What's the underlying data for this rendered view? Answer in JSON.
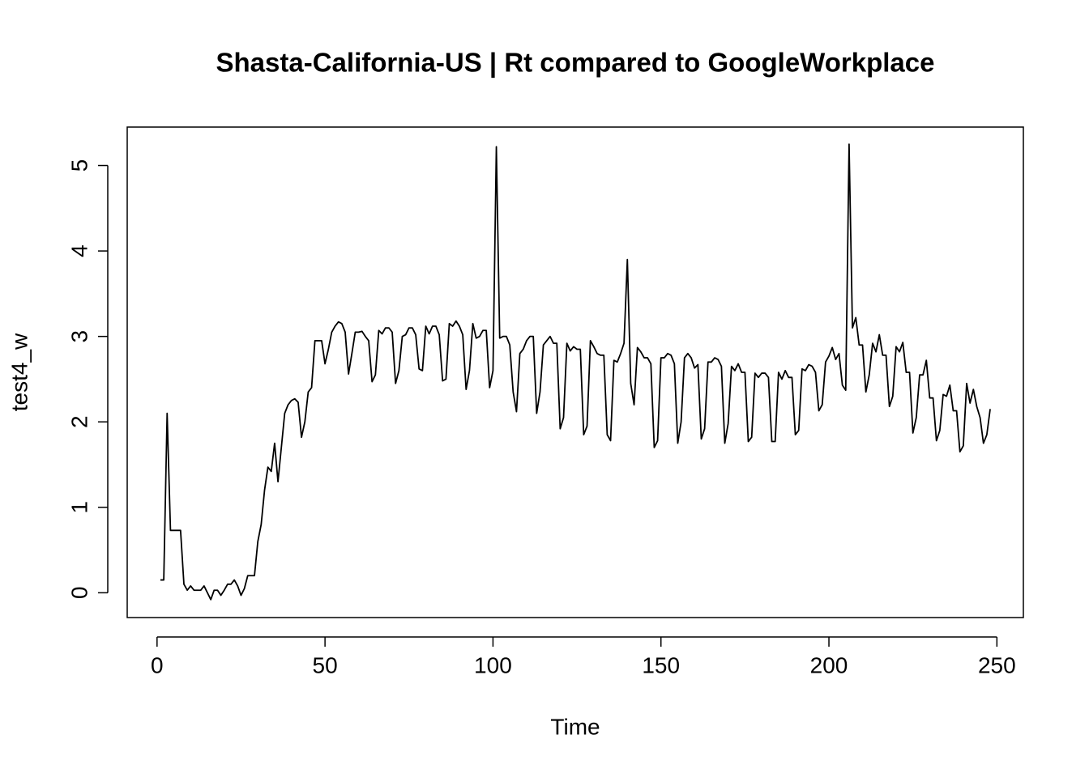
{
  "chart_data": {
    "type": "line",
    "title": "Shasta-California-US | Rt compared to GoogleWorkplace",
    "xlabel": "Time",
    "ylabel": "test4_w",
    "xlim": [
      -8.88,
      257.88
    ],
    "ylim": [
      -0.29,
      5.45
    ],
    "xticks": [
      0,
      50,
      100,
      150,
      200,
      250
    ],
    "yticks": [
      0,
      1,
      2,
      3,
      4,
      5
    ],
    "grid": false,
    "x": [
      1,
      2,
      3,
      4,
      5,
      6,
      7,
      8,
      9,
      10,
      11,
      12,
      13,
      14,
      15,
      16,
      17,
      18,
      19,
      20,
      21,
      22,
      23,
      24,
      25,
      26,
      27,
      28,
      29,
      30,
      31,
      32,
      33,
      34,
      35,
      36,
      37,
      38,
      39,
      40,
      41,
      42,
      43,
      44,
      45,
      46,
      47,
      48,
      49,
      50,
      51,
      52,
      53,
      54,
      55,
      56,
      57,
      58,
      59,
      60,
      61,
      62,
      63,
      64,
      65,
      66,
      67,
      68,
      69,
      70,
      71,
      72,
      73,
      74,
      75,
      76,
      77,
      78,
      79,
      80,
      81,
      82,
      83,
      84,
      85,
      86,
      87,
      88,
      89,
      90,
      91,
      92,
      93,
      94,
      95,
      96,
      97,
      98,
      99,
      100,
      101,
      102,
      103,
      104,
      105,
      106,
      107,
      108,
      109,
      110,
      111,
      112,
      113,
      114,
      115,
      116,
      117,
      118,
      119,
      120,
      121,
      122,
      123,
      124,
      125,
      126,
      127,
      128,
      129,
      130,
      131,
      132,
      133,
      134,
      135,
      136,
      137,
      138,
      139,
      140,
      141,
      142,
      143,
      144,
      145,
      146,
      147,
      148,
      149,
      150,
      151,
      152,
      153,
      154,
      155,
      156,
      157,
      158,
      159,
      160,
      161,
      162,
      163,
      164,
      165,
      166,
      167,
      168,
      169,
      170,
      171,
      172,
      173,
      174,
      175,
      176,
      177,
      178,
      179,
      180,
      181,
      182,
      183,
      184,
      185,
      186,
      187,
      188,
      189,
      190,
      191,
      192,
      193,
      194,
      195,
      196,
      197,
      198,
      199,
      200,
      201,
      202,
      203,
      204,
      205,
      206,
      207,
      208,
      209,
      210,
      211,
      212,
      213,
      214,
      215,
      216,
      217,
      218,
      219,
      220,
      221,
      222,
      223,
      224,
      225,
      226,
      227,
      228,
      229,
      230,
      231,
      232,
      233,
      234,
      235,
      236,
      237,
      238,
      239,
      240,
      241,
      242,
      243,
      244,
      245,
      246,
      247,
      248
    ],
    "series": [
      {
        "color": "#000000",
        "values": [
          0.15,
          0.15,
          2.1,
          0.73,
          0.73,
          0.73,
          0.73,
          0.1,
          0.03,
          0.08,
          0.03,
          0.03,
          0.03,
          0.08,
          0,
          -0.08,
          0.03,
          0.03,
          -0.03,
          0.03,
          0.1,
          0.1,
          0.15,
          0.08,
          -0.03,
          0.05,
          0.2,
          0.2,
          0.2,
          0.6,
          0.8,
          1.2,
          1.47,
          1.42,
          1.75,
          1.3,
          1.7,
          2.1,
          2.2,
          2.25,
          2.27,
          2.23,
          1.82,
          2.0,
          2.35,
          2.4,
          2.95,
          2.95,
          2.95,
          2.68,
          2.85,
          3.05,
          3.12,
          3.17,
          3.15,
          3.05,
          2.56,
          2.8,
          3.05,
          3.05,
          3.06,
          3.0,
          2.95,
          2.47,
          2.55,
          3.07,
          3.03,
          3.1,
          3.1,
          3.05,
          2.45,
          2.6,
          3.0,
          3.02,
          3.1,
          3.1,
          3.02,
          2.62,
          2.6,
          3.12,
          3.03,
          3.12,
          3.12,
          3.02,
          2.48,
          2.5,
          3.15,
          3.12,
          3.18,
          3.12,
          3.02,
          2.38,
          2.6,
          3.15,
          2.98,
          3.0,
          3.07,
          3.07,
          2.4,
          2.6,
          5.22,
          2.98,
          3.0,
          3.0,
          2.9,
          2.35,
          2.12,
          2.8,
          2.85,
          2.95,
          3.0,
          3.0,
          2.1,
          2.35,
          2.9,
          2.95,
          3.0,
          2.92,
          2.92,
          1.92,
          2.05,
          2.92,
          2.83,
          2.88,
          2.85,
          2.85,
          1.85,
          1.95,
          2.95,
          2.88,
          2.8,
          2.78,
          2.78,
          1.85,
          1.78,
          2.72,
          2.7,
          2.8,
          2.92,
          3.9,
          2.45,
          2.2,
          2.87,
          2.82,
          2.75,
          2.75,
          2.68,
          1.7,
          1.78,
          2.75,
          2.75,
          2.8,
          2.78,
          2.68,
          1.75,
          2.0,
          2.75,
          2.8,
          2.75,
          2.63,
          2.67,
          1.8,
          1.92,
          2.7,
          2.7,
          2.75,
          2.73,
          2.65,
          1.75,
          1.98,
          2.65,
          2.6,
          2.68,
          2.58,
          2.58,
          1.77,
          1.82,
          2.57,
          2.52,
          2.57,
          2.57,
          2.52,
          1.77,
          1.77,
          2.58,
          2.5,
          2.6,
          2.52,
          2.52,
          1.85,
          1.9,
          2.62,
          2.6,
          2.67,
          2.65,
          2.58,
          2.13,
          2.2,
          2.7,
          2.77,
          2.87,
          2.73,
          2.8,
          2.43,
          2.37,
          5.25,
          3.1,
          3.22,
          2.9,
          2.9,
          2.35,
          2.55,
          2.92,
          2.82,
          3.02,
          2.78,
          2.78,
          2.18,
          2.3,
          2.88,
          2.82,
          2.93,
          2.58,
          2.58,
          1.87,
          2.05,
          2.55,
          2.55,
          2.72,
          2.28,
          2.28,
          1.78,
          1.9,
          2.32,
          2.3,
          2.43,
          2.13,
          2.13,
          1.65,
          1.72,
          2.45,
          2.22,
          2.38,
          2.18,
          2.05,
          1.75,
          1.85,
          2.15
        ]
      }
    ]
  }
}
